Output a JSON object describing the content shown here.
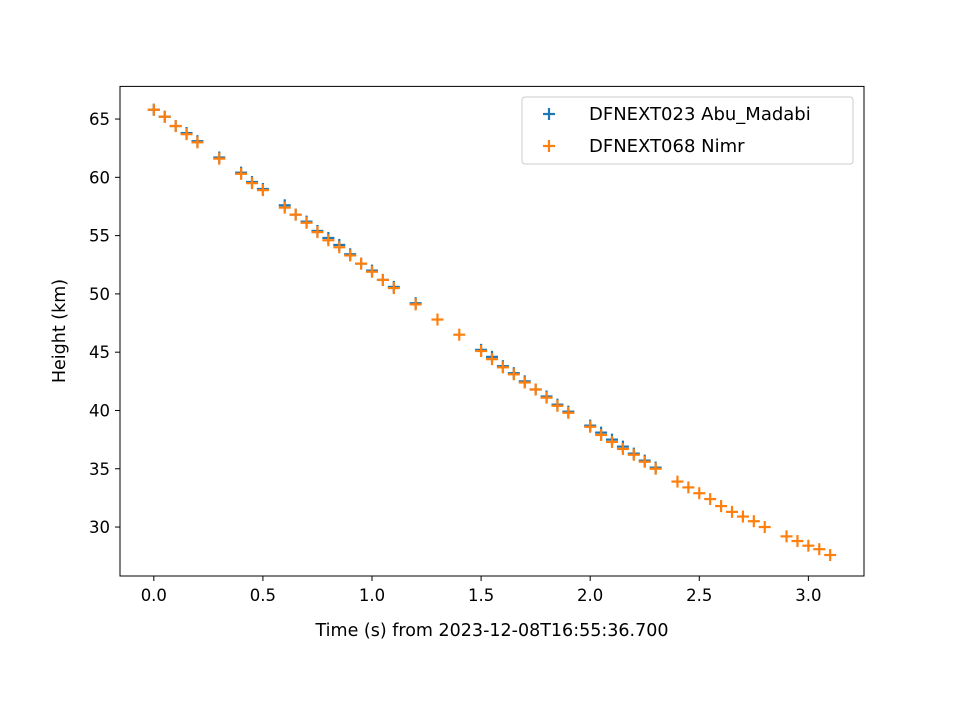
{
  "chart_data": {
    "type": "scatter",
    "xlabel": "Time (s) from 2023-12-08T16:55:36.700",
    "ylabel": "Height (km)",
    "xlim": [
      -0.155,
      3.255
    ],
    "ylim": [
      25.8,
      67.8
    ],
    "xticks": [
      0.0,
      0.5,
      1.0,
      1.5,
      2.0,
      2.5,
      3.0
    ],
    "xtick_labels": [
      "0.0",
      "0.5",
      "1.0",
      "1.5",
      "2.0",
      "2.5",
      "3.0"
    ],
    "yticks": [
      30,
      35,
      40,
      45,
      50,
      55,
      60,
      65
    ],
    "ytick_labels": [
      "30",
      "35",
      "40",
      "45",
      "50",
      "55",
      "60",
      "65"
    ],
    "grid": false,
    "legend_position": "top-right",
    "marker": "+",
    "series": [
      {
        "name": "DFNEXT023 Abu_Madabi",
        "color": "#1f77b4",
        "x": [
          0.0,
          0.05,
          0.1,
          0.15,
          0.2,
          0.3,
          0.4,
          0.45,
          0.5,
          0.6,
          0.65,
          0.7,
          0.75,
          0.8,
          0.85,
          0.9,
          0.95,
          1.0,
          1.05,
          1.1,
          1.2,
          1.5,
          1.55,
          1.6,
          1.65,
          1.7,
          1.75,
          1.8,
          1.85,
          1.9,
          2.0,
          2.05,
          2.1,
          2.15,
          2.2,
          2.25,
          2.3
        ],
        "y": [
          65.8,
          65.2,
          64.4,
          63.8,
          63.1,
          61.7,
          60.4,
          59.6,
          59.0,
          57.6,
          56.8,
          56.2,
          55.4,
          54.8,
          54.2,
          53.4,
          52.6,
          52.0,
          51.2,
          50.6,
          49.2,
          45.2,
          44.6,
          43.8,
          43.2,
          42.5,
          41.8,
          41.2,
          40.5,
          39.9,
          38.7,
          38.1,
          37.5,
          36.9,
          36.3,
          35.7,
          35.1
        ]
      },
      {
        "name": "DFNEXT068 Nimr",
        "color": "#ff7f0e",
        "x": [
          0.0,
          0.05,
          0.1,
          0.15,
          0.2,
          0.3,
          0.4,
          0.45,
          0.5,
          0.6,
          0.65,
          0.7,
          0.75,
          0.8,
          0.85,
          0.9,
          0.95,
          1.0,
          1.05,
          1.1,
          1.2,
          1.3,
          1.4,
          1.5,
          1.55,
          1.6,
          1.65,
          1.7,
          1.75,
          1.8,
          1.85,
          1.9,
          2.0,
          2.05,
          2.1,
          2.15,
          2.2,
          2.25,
          2.3,
          2.4,
          2.45,
          2.5,
          2.55,
          2.6,
          2.65,
          2.7,
          2.75,
          2.8,
          2.9,
          2.95,
          3.0,
          3.05,
          3.1
        ],
        "y": [
          65.8,
          65.2,
          64.4,
          63.7,
          63.0,
          61.6,
          60.3,
          59.5,
          58.9,
          57.4,
          56.8,
          56.1,
          55.3,
          54.6,
          54.0,
          53.3,
          52.6,
          51.9,
          51.2,
          50.5,
          49.1,
          47.8,
          46.5,
          45.1,
          44.4,
          43.7,
          43.1,
          42.4,
          41.8,
          41.1,
          40.4,
          39.8,
          38.6,
          37.9,
          37.3,
          36.7,
          36.2,
          35.6,
          35.0,
          33.9,
          33.4,
          32.9,
          32.4,
          31.8,
          31.3,
          30.9,
          30.5,
          30.0,
          29.2,
          28.8,
          28.4,
          28.1,
          27.6
        ]
      }
    ]
  }
}
